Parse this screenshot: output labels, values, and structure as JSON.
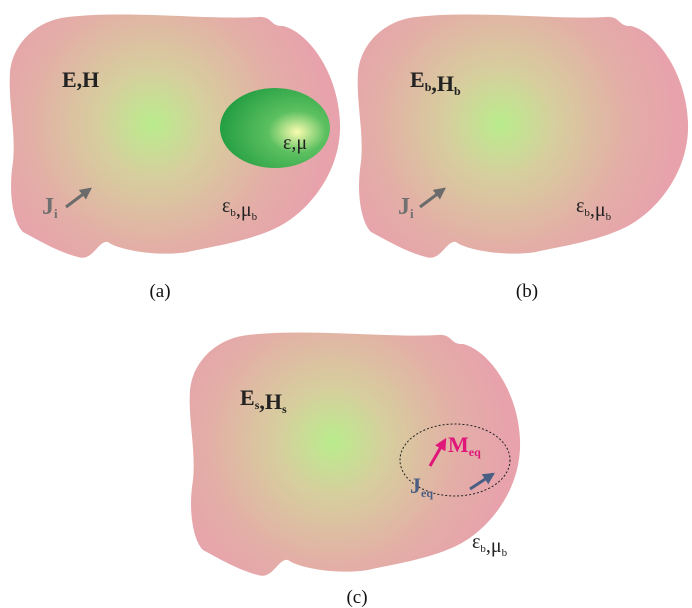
{
  "panels": [
    {
      "caption": "(a)",
      "labels": [
        [
          {
            "text": "E,H"
          }
        ],
        [
          {
            "text": "ε,μ"
          }
        ],
        [
          {
            "text": "J"
          },
          {
            "sub": "i"
          }
        ],
        [
          {
            "text": "ε"
          },
          {
            "sub": "b"
          },
          {
            "text": ",μ"
          },
          {
            "sub": "b"
          }
        ]
      ]
    },
    {
      "caption": "(b)",
      "labels": [
        [
          {
            "text": "E"
          },
          {
            "sub": "b"
          },
          {
            "text": ",H"
          },
          {
            "sub": "b"
          }
        ],
        [
          {
            "text": "J"
          },
          {
            "sub": "i"
          }
        ],
        [
          {
            "text": "ε"
          },
          {
            "sub": "b"
          },
          {
            "text": ",μ"
          },
          {
            "sub": "b"
          }
        ]
      ]
    },
    {
      "caption": "(c)",
      "labels": [
        [
          {
            "text": "E"
          },
          {
            "sub": "s"
          },
          {
            "text": ",H"
          },
          {
            "sub": "s"
          }
        ],
        [
          {
            "text": "M"
          },
          {
            "sub": "eq"
          }
        ],
        [
          {
            "text": "J"
          },
          {
            "sub": "eq"
          }
        ],
        [
          {
            "text": "ε"
          },
          {
            "sub": "b"
          },
          {
            "text": ",μ"
          },
          {
            "sub": "b"
          }
        ]
      ]
    }
  ]
}
